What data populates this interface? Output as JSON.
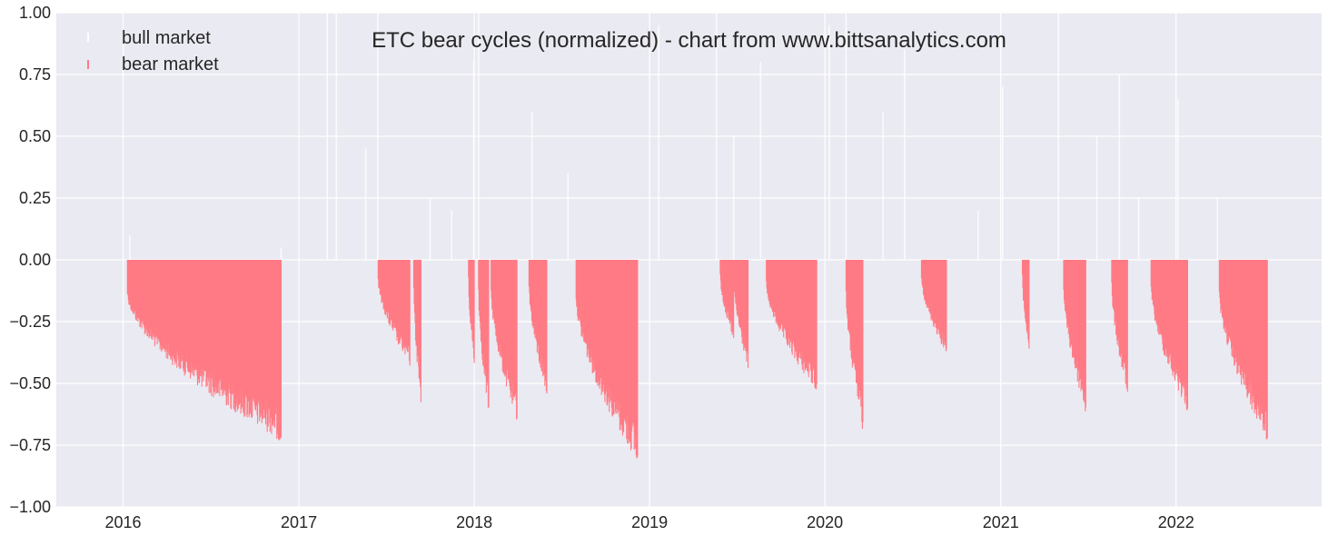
{
  "chart_data": {
    "type": "bar",
    "title": "ETC bear cycles (normalized)  - chart from www.bittsanalytics.com",
    "xlabel": "",
    "ylabel": "",
    "ylim": [
      -1.0,
      1.0
    ],
    "xlim": [
      "2015-08-15",
      "2022-10-31"
    ],
    "yticks": [
      "1.00",
      "0.75",
      "0.50",
      "0.25",
      "0.00",
      "−0.25",
      "−0.50",
      "−0.75",
      "−1.00"
    ],
    "ytick_values": [
      1.0,
      0.75,
      0.5,
      0.25,
      0.0,
      -0.25,
      -0.5,
      -0.75,
      -1.0
    ],
    "xticks": [
      {
        "label": "2016",
        "date": "2016-01-01"
      },
      {
        "label": "2017",
        "date": "2017-01-01"
      },
      {
        "label": "2018",
        "date": "2018-01-01"
      },
      {
        "label": "2019",
        "date": "2019-01-01"
      },
      {
        "label": "2020",
        "date": "2020-01-01"
      },
      {
        "label": "2021",
        "date": "2021-01-01"
      },
      {
        "label": "2022",
        "date": "2022-01-01"
      }
    ],
    "grid": true,
    "legend_position": "top-left",
    "colors": {
      "background": "#eaeaf2",
      "grid": "#ffffff",
      "bear": "#ff7b85",
      "bull": "#ffffff"
    },
    "series": [
      {
        "name": "bull market",
        "color": "#ffffff",
        "points": [
          {
            "x": "2016-01-15",
            "y": 0.1
          },
          {
            "x": "2016-11-25",
            "y": 0.05
          },
          {
            "x": "2017-03-01",
            "y": 1.0
          },
          {
            "x": "2017-03-20",
            "y": 1.0
          },
          {
            "x": "2017-05-20",
            "y": 0.45
          },
          {
            "x": "2017-06-14",
            "y": 1.0
          },
          {
            "x": "2017-10-01",
            "y": 0.25
          },
          {
            "x": "2017-11-15",
            "y": 0.2
          },
          {
            "x": "2017-12-31",
            "y": 0.8
          },
          {
            "x": "2018-01-10",
            "y": 1.0
          },
          {
            "x": "2018-05-01",
            "y": 0.6
          },
          {
            "x": "2018-07-15",
            "y": 0.35
          },
          {
            "x": "2019-01-20",
            "y": 0.95
          },
          {
            "x": "2019-05-20",
            "y": 1.0
          },
          {
            "x": "2019-06-25",
            "y": 0.5
          },
          {
            "x": "2019-08-20",
            "y": 0.8
          },
          {
            "x": "2020-01-10",
            "y": 0.95
          },
          {
            "x": "2020-02-14",
            "y": 1.0
          },
          {
            "x": "2020-05-01",
            "y": 0.6
          },
          {
            "x": "2020-06-15",
            "y": 0.85
          },
          {
            "x": "2020-11-15",
            "y": 0.2
          },
          {
            "x": "2021-01-05",
            "y": 0.7
          },
          {
            "x": "2021-05-01",
            "y": 1.0
          },
          {
            "x": "2021-07-20",
            "y": 0.5
          },
          {
            "x": "2021-09-05",
            "y": 0.75
          },
          {
            "x": "2021-10-15",
            "y": 0.25
          },
          {
            "x": "2022-01-05",
            "y": 0.65
          },
          {
            "x": "2022-03-28",
            "y": 0.25
          }
        ]
      },
      {
        "name": "bear market",
        "color": "#ff7b85",
        "segments": [
          {
            "start": "2016-01-10",
            "end": "2016-11-25",
            "min": -0.73
          },
          {
            "start": "2017-06-15",
            "end": "2017-08-20",
            "min": -0.43
          },
          {
            "start": "2017-08-28",
            "end": "2017-09-12",
            "min": -0.59
          },
          {
            "start": "2017-12-20",
            "end": "2018-01-01",
            "min": -0.43
          },
          {
            "start": "2018-01-10",
            "end": "2018-01-31",
            "min": -0.63
          },
          {
            "start": "2018-02-05",
            "end": "2018-03-31",
            "min": -0.66
          },
          {
            "start": "2018-04-25",
            "end": "2018-06-01",
            "min": -0.55
          },
          {
            "start": "2018-08-01",
            "end": "2018-12-07",
            "min": -0.82
          },
          {
            "start": "2019-05-28",
            "end": "2019-06-25",
            "min": -0.33
          },
          {
            "start": "2019-06-25",
            "end": "2019-07-25",
            "min": -0.44
          },
          {
            "start": "2019-09-01",
            "end": "2019-12-15",
            "min": -0.53
          },
          {
            "start": "2020-02-14",
            "end": "2020-03-20",
            "min": -0.69
          },
          {
            "start": "2020-07-20",
            "end": "2020-09-10",
            "min": -0.38
          },
          {
            "start": "2021-02-15",
            "end": "2021-03-01",
            "min": -0.37
          },
          {
            "start": "2021-05-12",
            "end": "2021-06-27",
            "min": -0.62
          },
          {
            "start": "2021-08-20",
            "end": "2021-09-22",
            "min": -0.55
          },
          {
            "start": "2021-11-10",
            "end": "2022-01-25",
            "min": -0.61
          },
          {
            "start": "2022-04-01",
            "end": "2022-07-10",
            "min": -0.73
          }
        ]
      }
    ]
  }
}
